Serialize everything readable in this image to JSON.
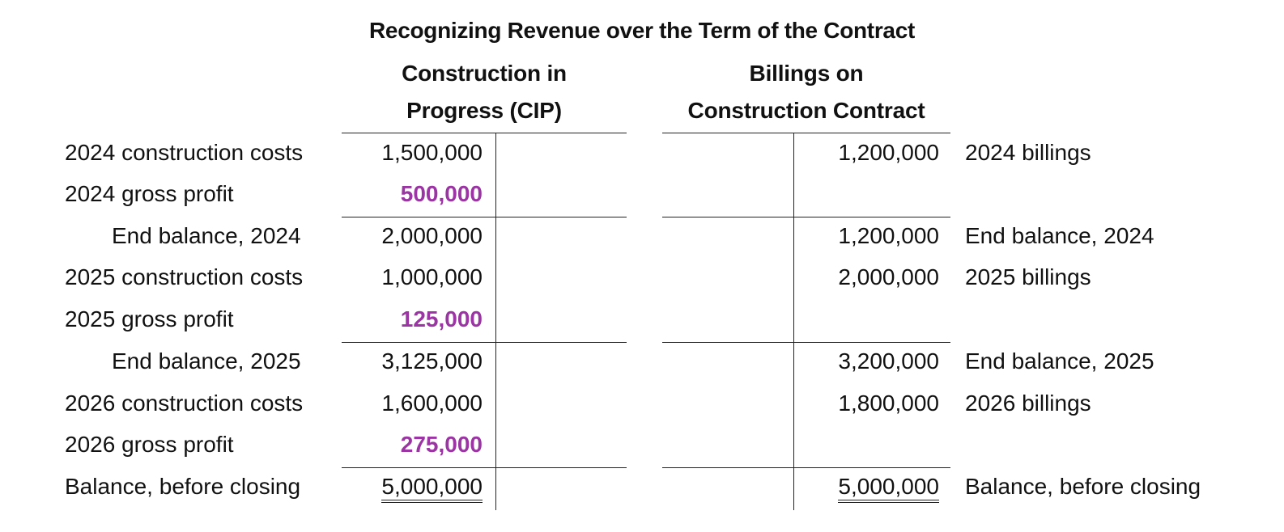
{
  "title": "Recognizing Revenue over the Term of the Contract",
  "colors": {
    "gross_profit": "#9b35a3",
    "rule": "#222222"
  },
  "cip": {
    "heading_line1": "Construction in",
    "heading_line2": "Progress (CIP)",
    "rows": [
      {
        "label": "2024 construction costs",
        "amount": "1,500,000"
      },
      {
        "label": "2024 gross profit",
        "amount": "500,000"
      },
      {
        "label": "End balance, 2024",
        "amount": "2,000,000"
      },
      {
        "label": "2025 construction costs",
        "amount": "1,000,000"
      },
      {
        "label": "2025 gross profit",
        "amount": "125,000"
      },
      {
        "label": "End balance, 2025",
        "amount": "3,125,000"
      },
      {
        "label": "2026 construction costs",
        "amount": "1,600,000"
      },
      {
        "label": "2026 gross profit",
        "amount": "275,000"
      },
      {
        "label": "Balance, before closing",
        "amount": "5,000,000"
      }
    ]
  },
  "billings": {
    "heading_line1": "Billings on",
    "heading_line2": "Construction Contract",
    "rows": [
      {
        "amount": "1,200,000",
        "label": "2024 billings"
      },
      {
        "amount": "1,200,000",
        "label": "End balance, 2024"
      },
      {
        "amount": "2,000,000",
        "label": "2025 billings"
      },
      {
        "amount": "3,200,000",
        "label": "End balance, 2025"
      },
      {
        "amount": "1,800,000",
        "label": "2026 billings"
      },
      {
        "amount": "5,000,000",
        "label": "Balance, before closing"
      }
    ]
  }
}
